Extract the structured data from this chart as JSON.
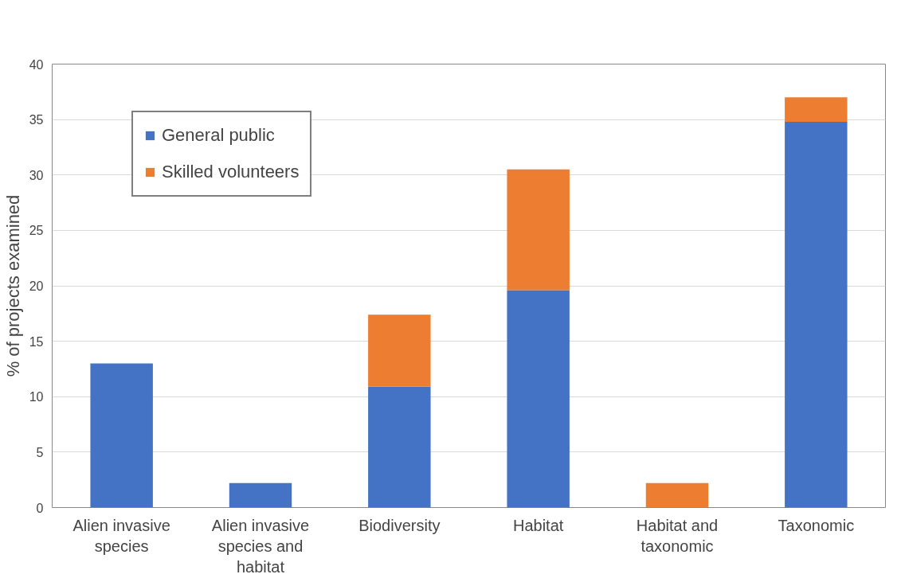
{
  "chart_data": {
    "type": "bar",
    "stacked": true,
    "ylabel": "% of projects examined",
    "categories": [
      "Alien invasive species",
      "Alien invasive species and habitat",
      "Biodiversity",
      "Habitat",
      "Habitat and taxonomic",
      "Taxonomic"
    ],
    "series": [
      {
        "name": "General public",
        "color": "#4472c4",
        "values": [
          13.0,
          2.2,
          10.9,
          19.6,
          0,
          34.8
        ]
      },
      {
        "name": "Skilled volunteers",
        "color": "#ed7d31",
        "values": [
          0,
          0,
          6.5,
          10.9,
          2.2,
          2.2
        ]
      }
    ],
    "ylim": [
      0,
      40
    ],
    "yticks": [
      0,
      5,
      10,
      15,
      20,
      25,
      30,
      35,
      40
    ],
    "grid": "y",
    "legend": "top left"
  }
}
